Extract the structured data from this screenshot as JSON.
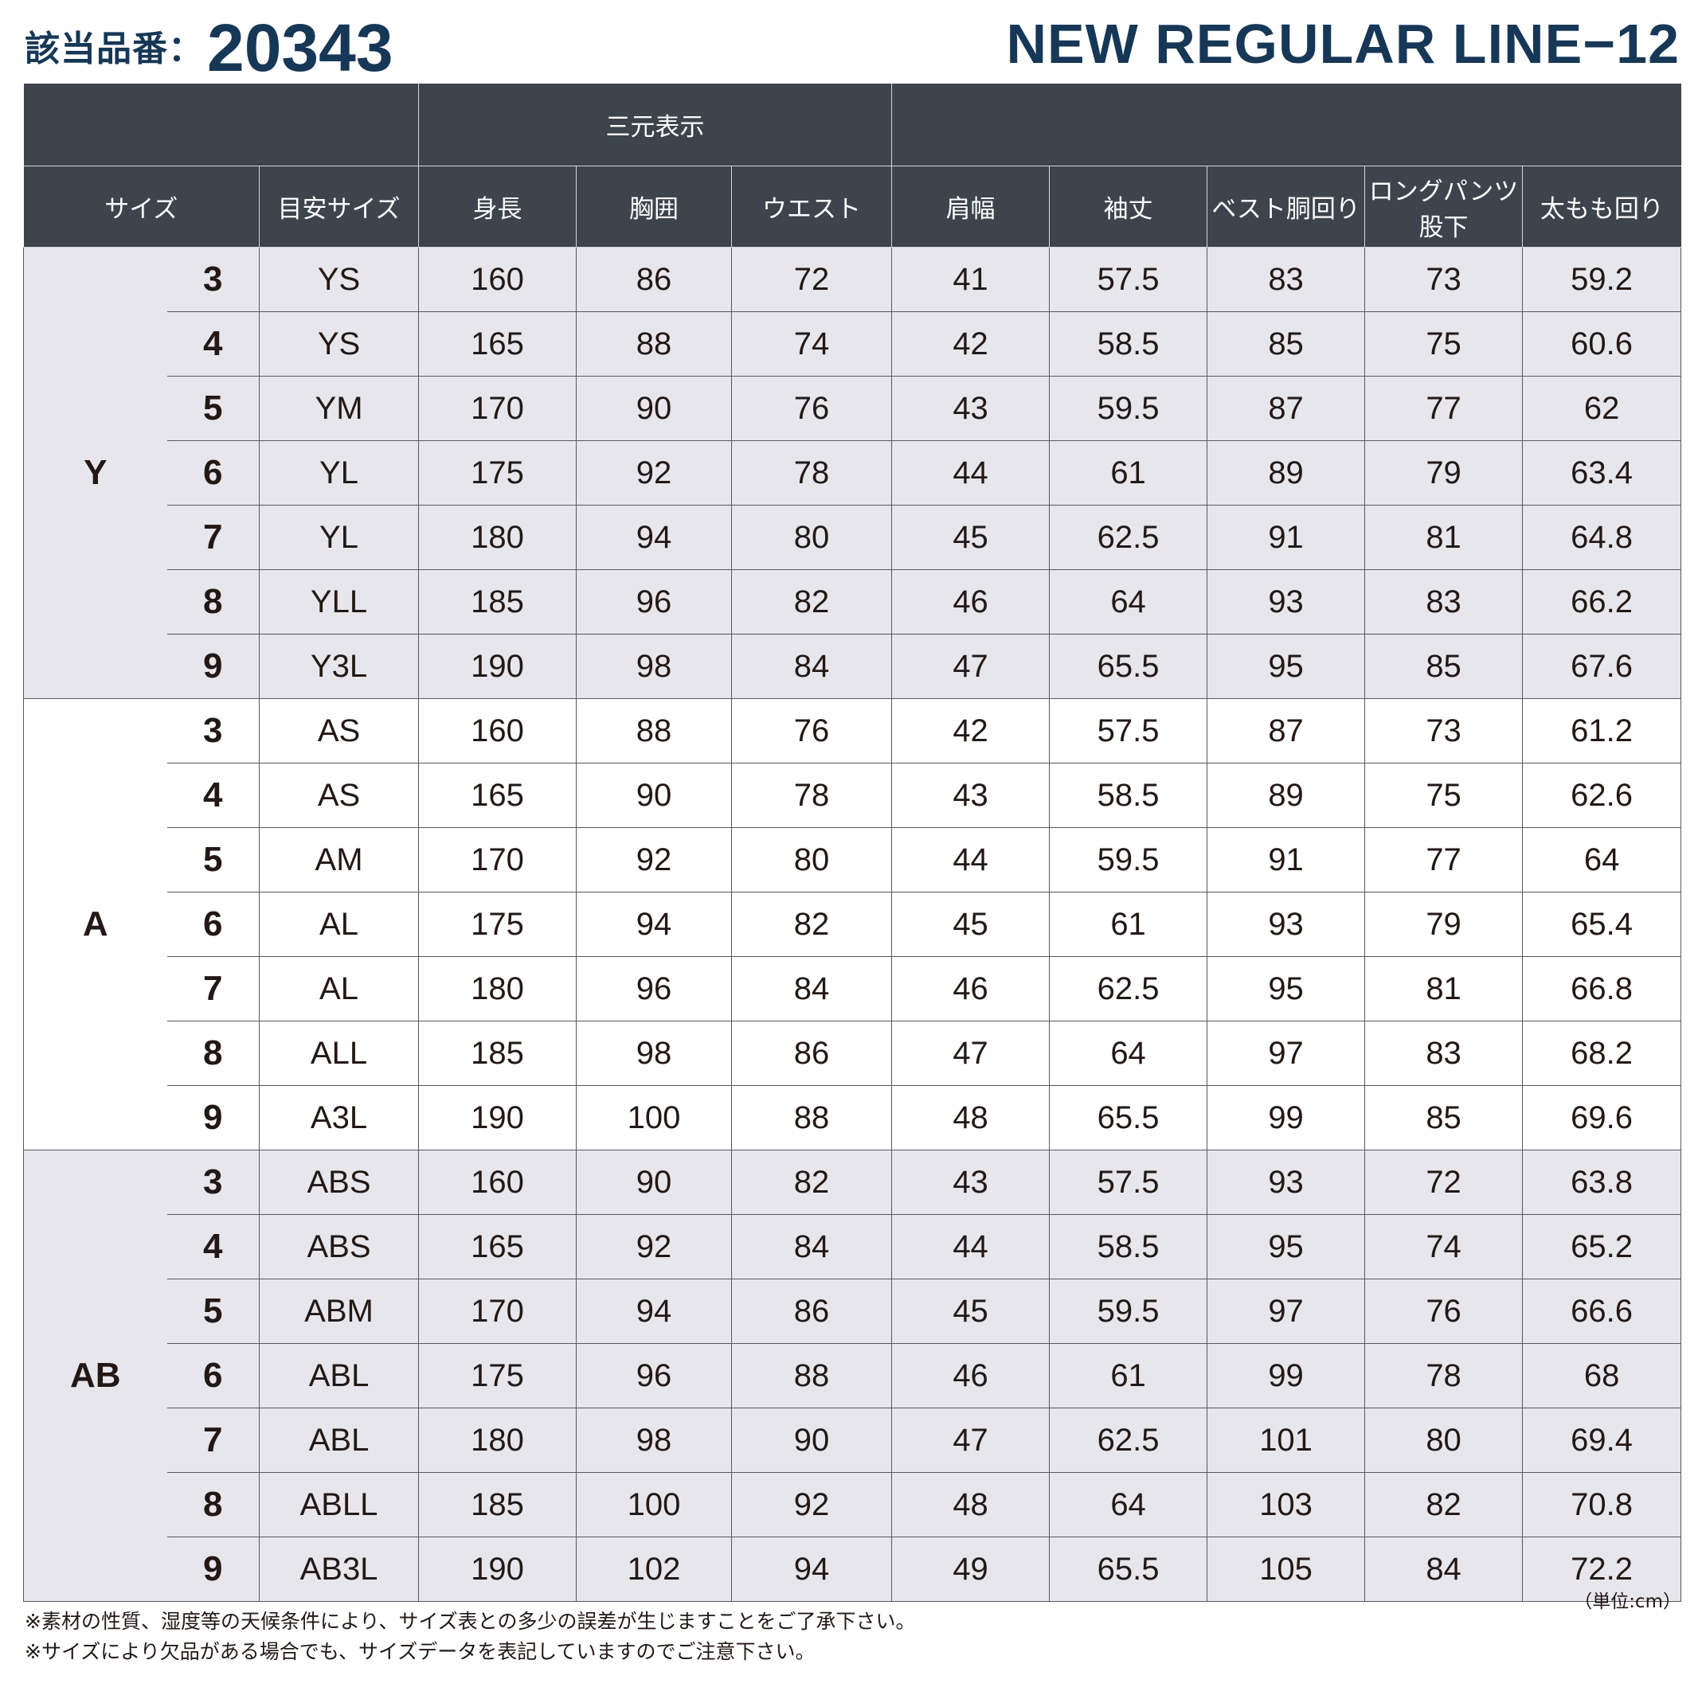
{
  "header": {
    "product_label": "該当品番：",
    "product_number": "20343",
    "series_title": "NEW REGULAR LINE−12"
  },
  "table": {
    "group_header": "三元表示",
    "columns": {
      "size": "サイズ",
      "guide_size": "目安サイズ",
      "height": "身長",
      "chest": "胸囲",
      "waist": "ウエスト",
      "shoulder": "肩幅",
      "sleeve": "袖丈",
      "vest_waist": "ベスト胴回り",
      "inseam": "ロングパンツ股下",
      "thigh": "太もも回り"
    },
    "groups": [
      {
        "label": "Y",
        "shade": true,
        "rows": [
          {
            "num": "3",
            "guide": "YS",
            "height": "160",
            "chest": "86",
            "waist": "72",
            "shoulder": "41",
            "sleeve": "57.5",
            "vest": "83",
            "inseam": "73",
            "thigh": "59.2"
          },
          {
            "num": "4",
            "guide": "YS",
            "height": "165",
            "chest": "88",
            "waist": "74",
            "shoulder": "42",
            "sleeve": "58.5",
            "vest": "85",
            "inseam": "75",
            "thigh": "60.6"
          },
          {
            "num": "5",
            "guide": "YM",
            "height": "170",
            "chest": "90",
            "waist": "76",
            "shoulder": "43",
            "sleeve": "59.5",
            "vest": "87",
            "inseam": "77",
            "thigh": "62"
          },
          {
            "num": "6",
            "guide": "YL",
            "height": "175",
            "chest": "92",
            "waist": "78",
            "shoulder": "44",
            "sleeve": "61",
            "vest": "89",
            "inseam": "79",
            "thigh": "63.4"
          },
          {
            "num": "7",
            "guide": "YL",
            "height": "180",
            "chest": "94",
            "waist": "80",
            "shoulder": "45",
            "sleeve": "62.5",
            "vest": "91",
            "inseam": "81",
            "thigh": "64.8"
          },
          {
            "num": "8",
            "guide": "YLL",
            "height": "185",
            "chest": "96",
            "waist": "82",
            "shoulder": "46",
            "sleeve": "64",
            "vest": "93",
            "inseam": "83",
            "thigh": "66.2"
          },
          {
            "num": "9",
            "guide": "Y3L",
            "height": "190",
            "chest": "98",
            "waist": "84",
            "shoulder": "47",
            "sleeve": "65.5",
            "vest": "95",
            "inseam": "85",
            "thigh": "67.6"
          }
        ]
      },
      {
        "label": "A",
        "shade": false,
        "rows": [
          {
            "num": "3",
            "guide": "AS",
            "height": "160",
            "chest": "88",
            "waist": "76",
            "shoulder": "42",
            "sleeve": "57.5",
            "vest": "87",
            "inseam": "73",
            "thigh": "61.2"
          },
          {
            "num": "4",
            "guide": "AS",
            "height": "165",
            "chest": "90",
            "waist": "78",
            "shoulder": "43",
            "sleeve": "58.5",
            "vest": "89",
            "inseam": "75",
            "thigh": "62.6"
          },
          {
            "num": "5",
            "guide": "AM",
            "height": "170",
            "chest": "92",
            "waist": "80",
            "shoulder": "44",
            "sleeve": "59.5",
            "vest": "91",
            "inseam": "77",
            "thigh": "64"
          },
          {
            "num": "6",
            "guide": "AL",
            "height": "175",
            "chest": "94",
            "waist": "82",
            "shoulder": "45",
            "sleeve": "61",
            "vest": "93",
            "inseam": "79",
            "thigh": "65.4"
          },
          {
            "num": "7",
            "guide": "AL",
            "height": "180",
            "chest": "96",
            "waist": "84",
            "shoulder": "46",
            "sleeve": "62.5",
            "vest": "95",
            "inseam": "81",
            "thigh": "66.8"
          },
          {
            "num": "8",
            "guide": "ALL",
            "height": "185",
            "chest": "98",
            "waist": "86",
            "shoulder": "47",
            "sleeve": "64",
            "vest": "97",
            "inseam": "83",
            "thigh": "68.2"
          },
          {
            "num": "9",
            "guide": "A3L",
            "height": "190",
            "chest": "100",
            "waist": "88",
            "shoulder": "48",
            "sleeve": "65.5",
            "vest": "99",
            "inseam": "85",
            "thigh": "69.6"
          }
        ]
      },
      {
        "label": "AB",
        "shade": true,
        "rows": [
          {
            "num": "3",
            "guide": "ABS",
            "height": "160",
            "chest": "90",
            "waist": "82",
            "shoulder": "43",
            "sleeve": "57.5",
            "vest": "93",
            "inseam": "72",
            "thigh": "63.8"
          },
          {
            "num": "4",
            "guide": "ABS",
            "height": "165",
            "chest": "92",
            "waist": "84",
            "shoulder": "44",
            "sleeve": "58.5",
            "vest": "95",
            "inseam": "74",
            "thigh": "65.2"
          },
          {
            "num": "5",
            "guide": "ABM",
            "height": "170",
            "chest": "94",
            "waist": "86",
            "shoulder": "45",
            "sleeve": "59.5",
            "vest": "97",
            "inseam": "76",
            "thigh": "66.6"
          },
          {
            "num": "6",
            "guide": "ABL",
            "height": "175",
            "chest": "96",
            "waist": "88",
            "shoulder": "46",
            "sleeve": "61",
            "vest": "99",
            "inseam": "78",
            "thigh": "68"
          },
          {
            "num": "7",
            "guide": "ABL",
            "height": "180",
            "chest": "98",
            "waist": "90",
            "shoulder": "47",
            "sleeve": "62.5",
            "vest": "101",
            "inseam": "80",
            "thigh": "69.4"
          },
          {
            "num": "8",
            "guide": "ABLL",
            "height": "185",
            "chest": "100",
            "waist": "92",
            "shoulder": "48",
            "sleeve": "64",
            "vest": "103",
            "inseam": "82",
            "thigh": "70.8"
          },
          {
            "num": "9",
            "guide": "AB3L",
            "height": "190",
            "chest": "102",
            "waist": "94",
            "shoulder": "49",
            "sleeve": "65.5",
            "vest": "105",
            "inseam": "84",
            "thigh": "72.2"
          }
        ]
      }
    ]
  },
  "unit": "（単位:cm）",
  "notes": [
    "※素材の性質、湿度等の天候条件により、サイズ表との多少の誤差が生じますことをご了承下さい。",
    "※サイズにより欠品がある場合でも、サイズデータを表記していますのでご注意下さい。"
  ]
}
